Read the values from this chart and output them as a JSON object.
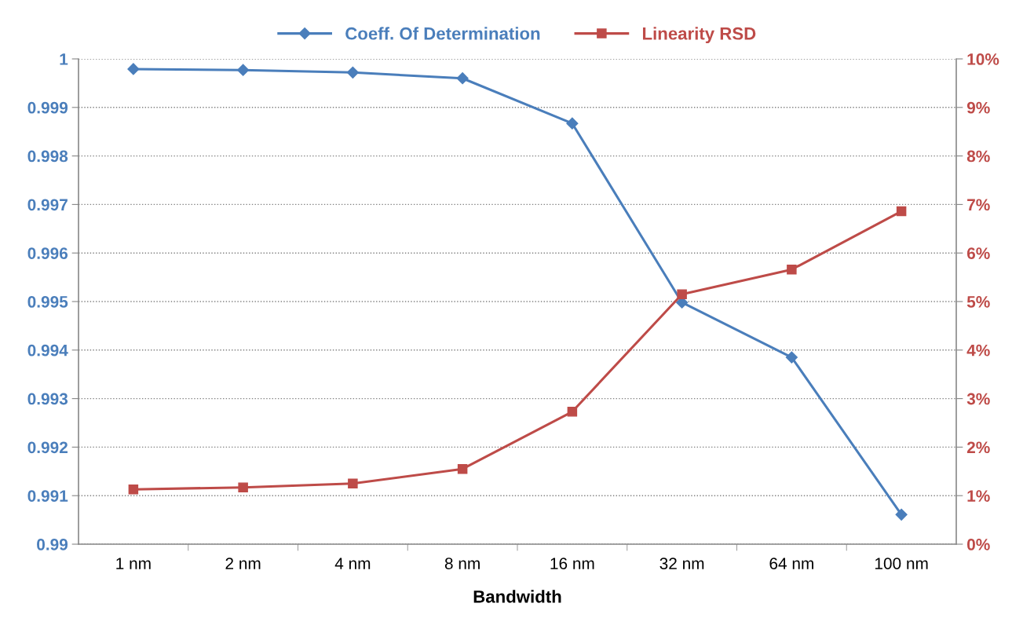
{
  "chart_data": {
    "type": "line",
    "xlabel": "Bandwidth",
    "categories": [
      "1 nm",
      "2 nm",
      "4 nm",
      "8 nm",
      "16 nm",
      "32 nm",
      "64 nm",
      "100 nm"
    ],
    "series": [
      {
        "name": "Coeff. Of Determination",
        "color": "#4a7ebb",
        "marker": "diamond",
        "values": [
          0.99979,
          0.99977,
          0.99972,
          0.9996,
          0.99867,
          0.99498,
          0.99385,
          0.99061
        ]
      },
      {
        "name": "Linearity RSD",
        "color": "#be4b48",
        "marker": "square",
        "axis": "y2",
        "values": [
          1.13,
          1.17,
          1.25,
          1.55,
          2.73,
          5.15,
          5.66,
          6.86
        ]
      }
    ],
    "ylim": [
      0.99,
      1
    ],
    "yticks": [
      0.99,
      0.991,
      0.992,
      0.993,
      0.994,
      0.995,
      0.996,
      0.997,
      0.998,
      0.999,
      1
    ],
    "y2lim": [
      0,
      10
    ],
    "y2ticks": [
      {
        "value": 0,
        "label": "0%"
      },
      {
        "value": 1,
        "label": "1%"
      },
      {
        "value": 2,
        "label": "2%"
      },
      {
        "value": 3,
        "label": "3%"
      },
      {
        "value": 4,
        "label": "4%"
      },
      {
        "value": 5,
        "label": "5%"
      },
      {
        "value": 6,
        "label": "6%"
      },
      {
        "value": 7,
        "label": "7%"
      },
      {
        "value": 8,
        "label": "8%"
      },
      {
        "value": 9,
        "label": "9%"
      },
      {
        "value": 10,
        "label": "10%"
      }
    ],
    "grid": "y",
    "legend": "top",
    "line_style": "solid"
  }
}
